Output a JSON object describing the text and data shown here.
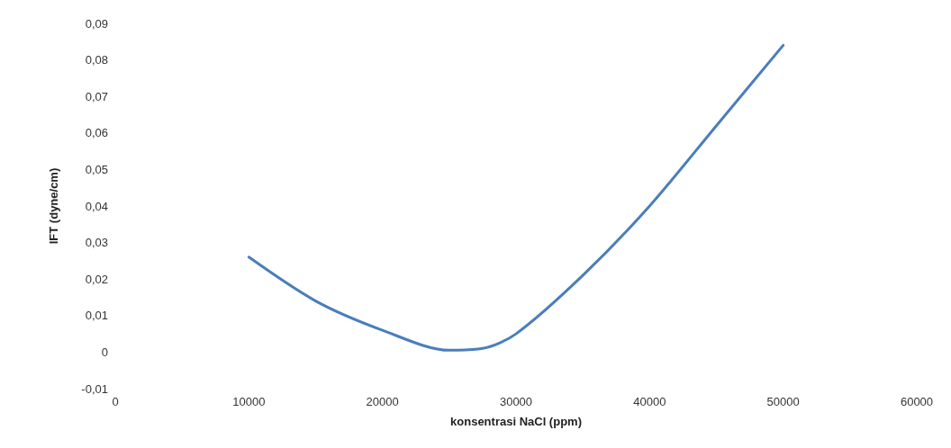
{
  "chart_data": {
    "type": "line",
    "xlabel": "konsentrasi NaCl (ppm)",
    "ylabel": "IFT (dyne/cm)",
    "x": [
      10000,
      15000,
      20000,
      25000,
      27500,
      30000,
      35000,
      40000,
      45000,
      50000
    ],
    "series": [
      {
        "color": "#4a7ebb",
        "values": [
          0.026,
          0.014,
          0.006,
          0.0005,
          0.001,
          0.005,
          0.021,
          0.04,
          0.062,
          0.084
        ]
      }
    ],
    "xlim": [
      0,
      60000
    ],
    "xticks": [
      0,
      10000,
      20000,
      30000,
      40000,
      50000,
      60000
    ],
    "ylim": [
      -0.01,
      0.09
    ],
    "yticks": [
      {
        "value": -0.01,
        "label": "-0,01"
      },
      {
        "value": 0,
        "label": "0"
      },
      {
        "value": 0.01,
        "label": "0,01"
      },
      {
        "value": 0.02,
        "label": "0,02"
      },
      {
        "value": 0.03,
        "label": "0,03"
      },
      {
        "value": 0.04,
        "label": "0,04"
      },
      {
        "value": 0.05,
        "label": "0,05"
      },
      {
        "value": 0.06,
        "label": "0,06"
      },
      {
        "value": 0.07,
        "label": "0,07"
      },
      {
        "value": 0.08,
        "label": "0,08"
      },
      {
        "value": 0.09,
        "label": "0,09"
      }
    ],
    "grid": false,
    "marker": "none",
    "line_style": "solid"
  }
}
